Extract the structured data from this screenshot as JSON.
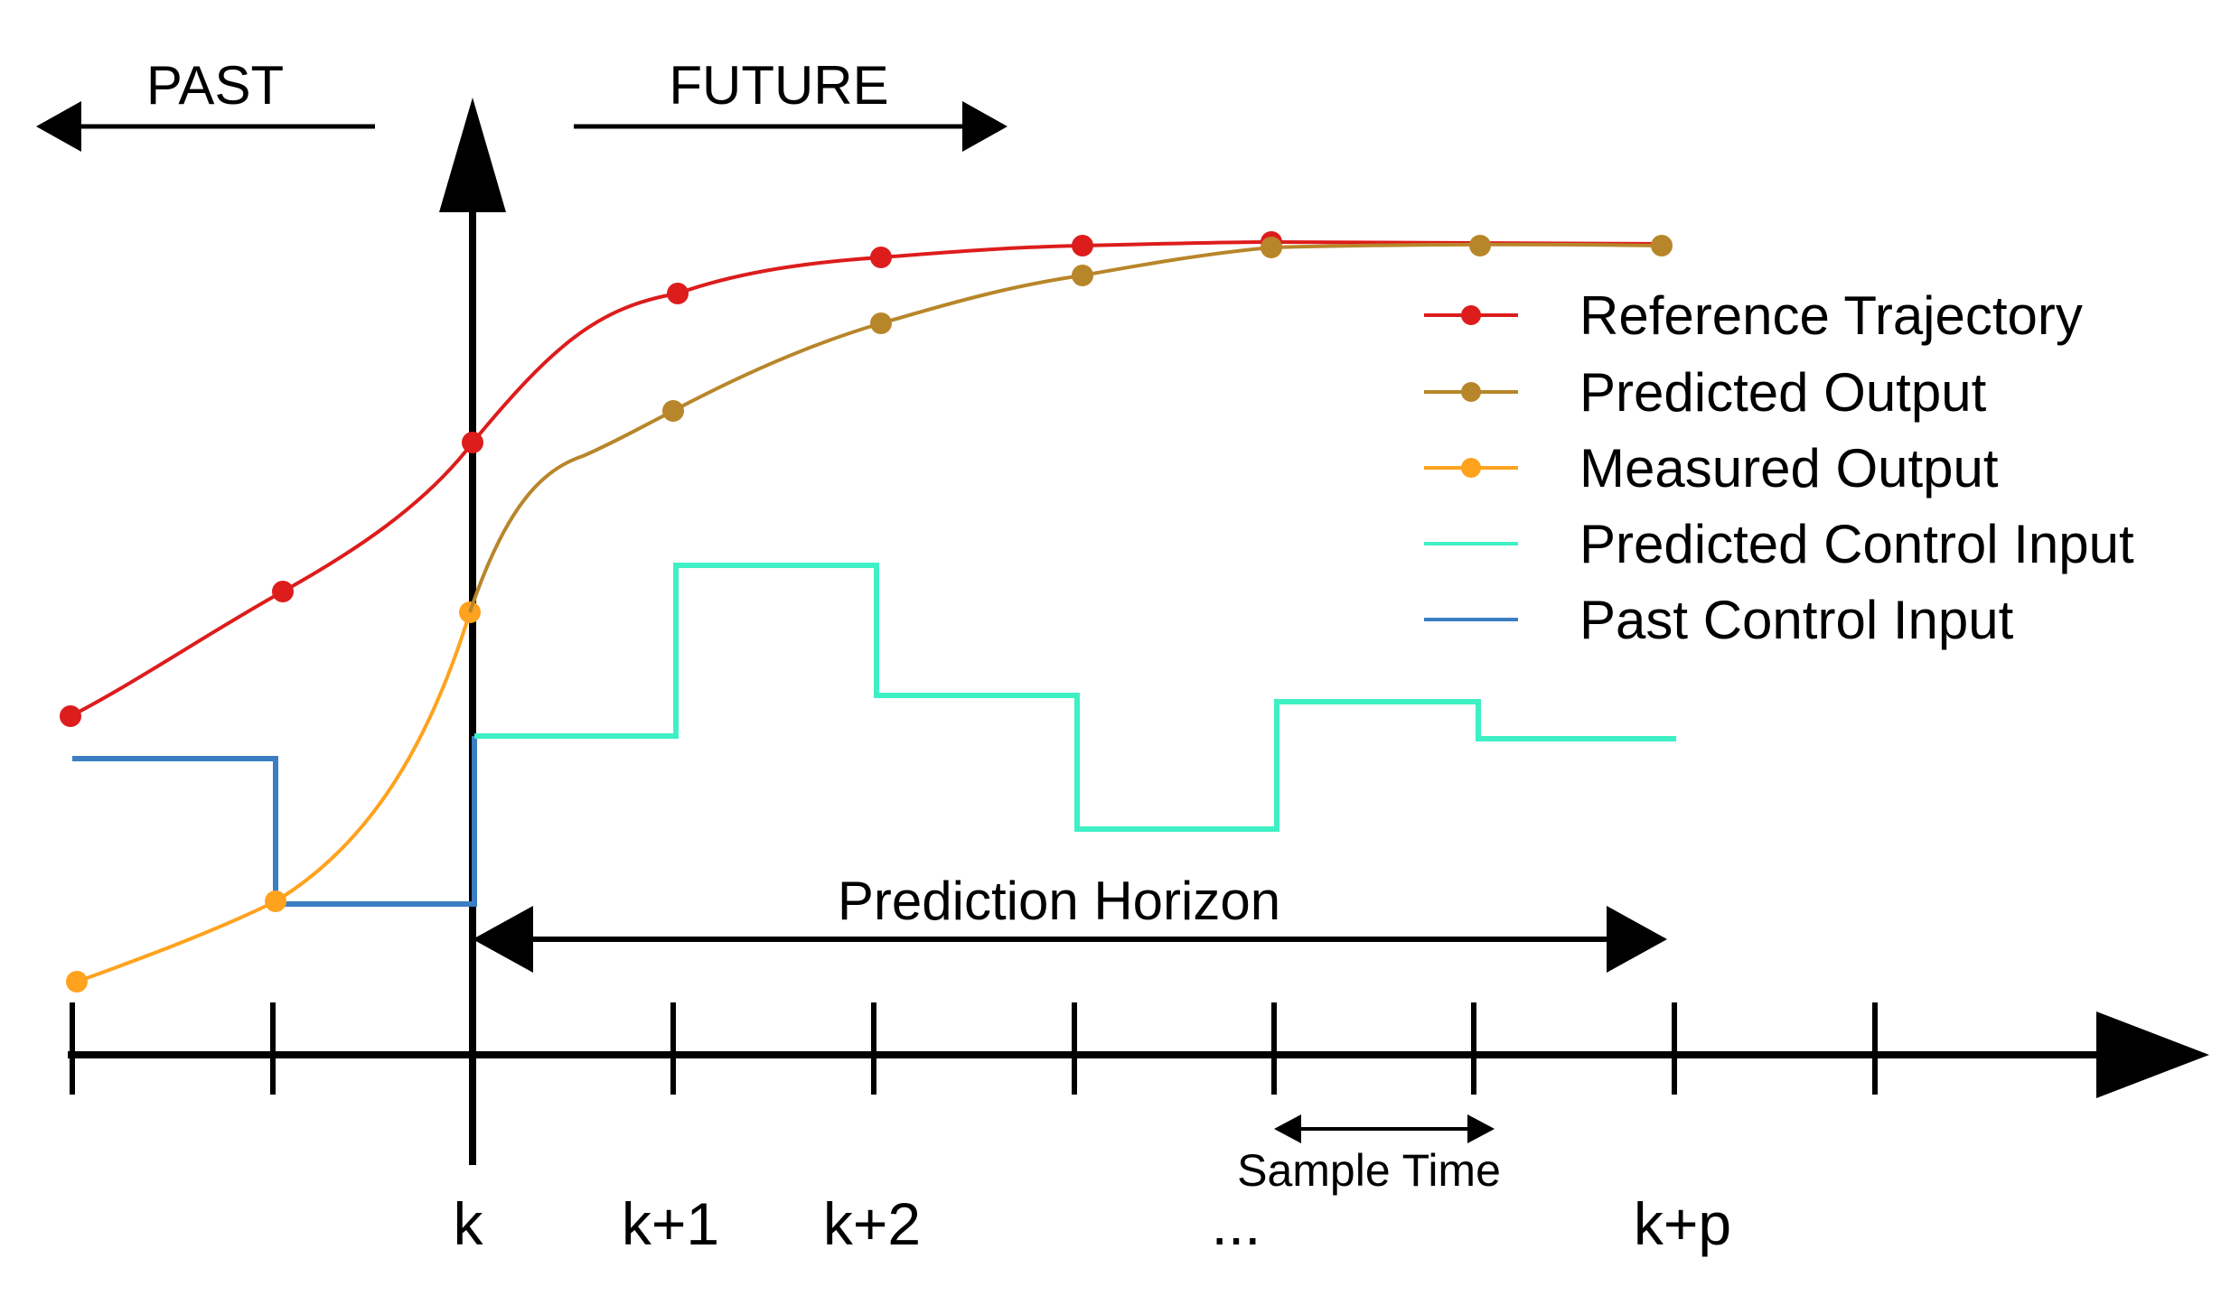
{
  "labels": {
    "past": "PAST",
    "future": "FUTURE",
    "prediction_horizon": "Prediction Horizon",
    "sample_time": "Sample Time"
  },
  "ticks": {
    "k": "k",
    "k1": "k+1",
    "k2": "k+2",
    "dots": "...",
    "kp": "k+p"
  },
  "legend": [
    {
      "label": "Reference Trajectory",
      "color": "#dd1c1c",
      "marker": true
    },
    {
      "label": "Predicted Output",
      "color": "#b8862a",
      "marker": true
    },
    {
      "label": "Measured Output",
      "color": "#ffa21e",
      "marker": true
    },
    {
      "label": "Predicted Control Input",
      "color": "#3ef0c4",
      "marker": false
    },
    {
      "label": "Past Control Input",
      "color": "#3b7ec2",
      "marker": false
    }
  ],
  "colors": {
    "axis": "#000000",
    "reference": "#dd1c1c",
    "predicted_output": "#b8862a",
    "measured_output": "#ffa21e",
    "predicted_control": "#3ef0c4",
    "past_control": "#3b7ec2"
  }
}
